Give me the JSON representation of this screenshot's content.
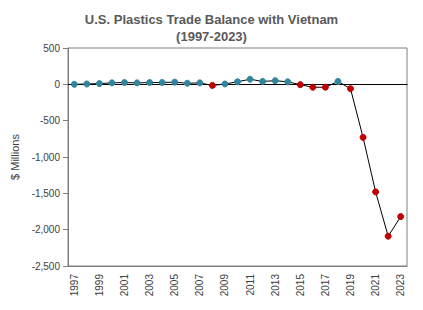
{
  "chart_data": {
    "type": "line",
    "title": "U.S. Plastics Trade Balance with Vietnam\n(1997-2023)",
    "y_label": "$ Millions",
    "categories": [
      "1997",
      null,
      "1999",
      null,
      "2001",
      null,
      "2003",
      null,
      "2005",
      null,
      "2007",
      null,
      "2009",
      null,
      "2011",
      null,
      "2013",
      null,
      "2015",
      null,
      "2017",
      null,
      "2019",
      null,
      "2021",
      null,
      "2023"
    ],
    "values": [
      0,
      5,
      10,
      20,
      25,
      20,
      25,
      25,
      30,
      15,
      20,
      -15,
      5,
      35,
      70,
      40,
      50,
      35,
      -5,
      -40,
      -40,
      40,
      -60,
      -730,
      -1480,
      -2090,
      -1820
    ],
    "colors": [
      "#31859c",
      "#31859c",
      "#31859c",
      "#31859c",
      "#31859c",
      "#31859c",
      "#31859c",
      "#31859c",
      "#31859c",
      "#31859c",
      "#31859c",
      "#c00000",
      "#31859c",
      "#31859c",
      "#31859c",
      "#31859c",
      "#31859c",
      "#31859c",
      "#c00000",
      "#c00000",
      "#c00000",
      "#31859c",
      "#c00000",
      "#c00000",
      "#c00000",
      "#c00000",
      "#c00000"
    ],
    "color": "#000000",
    "marker": "circle",
    "ylim": [
      -2500,
      500
    ],
    "yticks": [
      {
        "value": -2500,
        "label": "-2,500"
      },
      {
        "value": -2000,
        "label": "-2,000"
      },
      {
        "value": -1500,
        "label": "-1,500"
      },
      {
        "value": -1000,
        "label": "-1,000"
      },
      -500,
      0,
      500
    ],
    "grid": false
  }
}
